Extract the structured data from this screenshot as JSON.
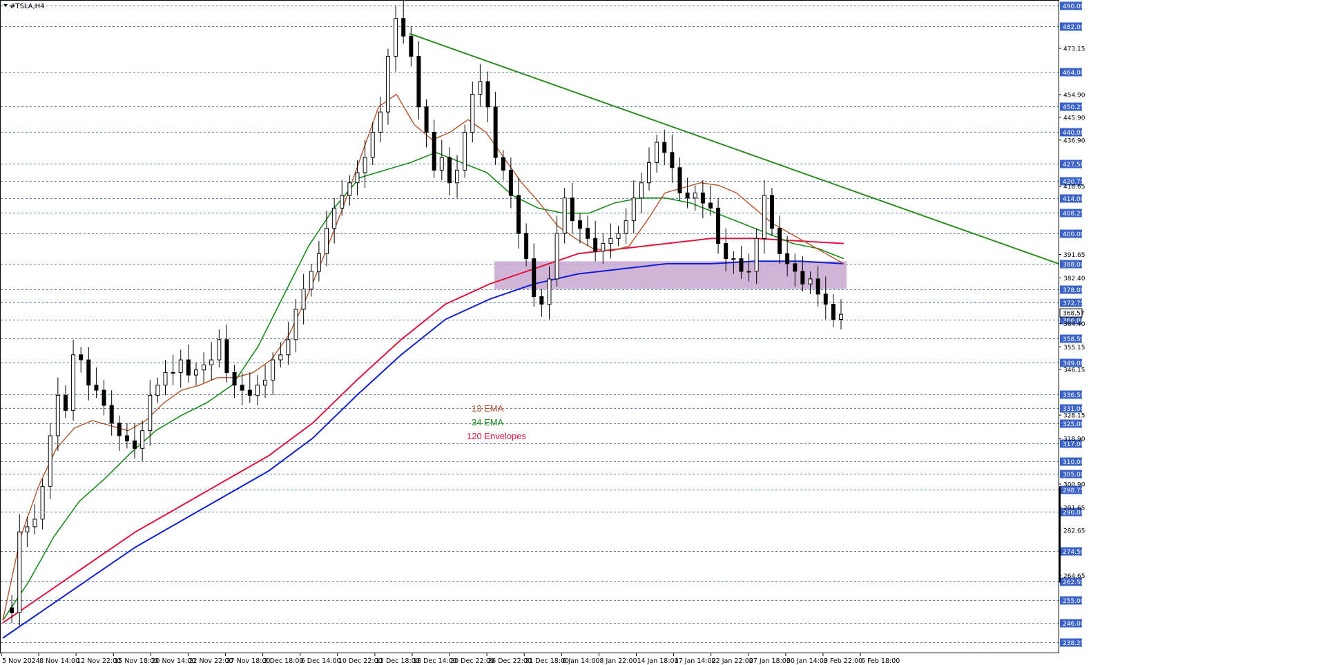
{
  "symbol_title": "#TSLA,H4",
  "colors": {
    "ema13": "#b5532a",
    "ema34": "#1a8c1a",
    "env_upper": "#e0143c",
    "env_lower": "#1020d0",
    "trendline": "#2e8b22",
    "zone": "#c9a8d2",
    "grid": "#5b7fb8",
    "axis_highlight": "#3c64c8",
    "bull": "#ffffff",
    "bear": "#000000"
  },
  "legend": [
    {
      "label": "13 EMA",
      "color": "#b5532a"
    },
    {
      "label": "34 EMA",
      "color": "#1a8c1a"
    },
    {
      "label": "120 Envelopes",
      "color": "#e0143c"
    }
  ],
  "chart_data": {
    "type": "candlestick",
    "title": "#TSLA,H4",
    "ylim": [
      234,
      492
    ],
    "grid": "horizontal dashed lines at highlighted levels",
    "y_ticks_highlighted": [
      "490.00",
      "482.00",
      "464.00",
      "450.25",
      "440.00",
      "427.50",
      "420.75",
      "414.00",
      "408.25",
      "400.00",
      "388.00",
      "378.00",
      "372.75",
      "366.00",
      "358.50",
      "349.00",
      "336.50",
      "331.00",
      "325.00",
      "317.00",
      "310.00",
      "305.00",
      "298.75",
      "290.00",
      "274.50",
      "262.50",
      "255.00",
      "246.00",
      "238.25"
    ],
    "y_ticks_plain": [
      "473.15",
      "454.90",
      "445.90",
      "436.90",
      "418.65",
      "391.65",
      "382.40",
      "364.40",
      "355.15",
      "346.15",
      "328.15",
      "318.90",
      "300.90",
      "291.65",
      "282.65",
      "264.65"
    ],
    "current_price_label": "368.57",
    "x_tick_labels": [
      "5 Nov 2024",
      "8 Nov 14:00",
      "12 Nov 22:00",
      "15 Nov 18:00",
      "20 Nov 14:00",
      "22 Nov 22:00",
      "27 Nov 18:00",
      "3 Dec 18:00",
      "6 Dec 14:00",
      "10 Dec 22:00",
      "13 Dec 18:00",
      "18 Dec 14:00",
      "20 Dec 22:00",
      "26 Dec 22:00",
      "31 Dec 18:00",
      "6 Jan 14:00",
      "8 Jan 22:00",
      "14 Jan 18:00",
      "17 Jan 14:00",
      "22 Jan 22:00",
      "27 Jan 18:00",
      "30 Jan 14:00",
      "3 Feb 22:00",
      "6 Feb 18:00"
    ],
    "price_path": [
      252,
      250,
      282,
      284,
      287,
      300,
      320,
      336,
      330,
      352,
      350,
      340,
      338,
      332,
      325,
      320,
      318,
      315,
      322,
      336,
      340,
      345,
      345,
      350,
      344,
      346,
      348,
      350,
      358,
      345,
      340,
      338,
      336,
      340,
      342,
      350,
      352,
      358,
      370,
      378,
      385,
      392,
      402,
      410,
      415,
      420,
      424,
      430,
      440,
      448,
      470,
      485,
      478,
      470,
      450,
      440,
      425,
      430,
      420,
      425,
      440,
      455,
      460,
      450,
      430,
      425,
      415,
      400,
      390,
      375,
      372,
      382,
      400,
      414,
      405,
      402,
      398,
      393,
      396,
      398,
      400,
      405,
      414,
      420,
      428,
      436,
      432,
      426,
      416,
      414,
      416,
      412,
      410,
      396,
      390,
      390,
      385,
      385,
      398,
      415,
      402,
      392,
      388,
      385,
      380,
      382,
      376,
      372,
      366,
      368
    ],
    "ema13": [
      247,
      280,
      300,
      315,
      323,
      326,
      324,
      322,
      326,
      333,
      338,
      340,
      343,
      343,
      345,
      350,
      360,
      375,
      392,
      410,
      430,
      450,
      455,
      443,
      437,
      440,
      445,
      440,
      430,
      420,
      412,
      403,
      398,
      394,
      393,
      395,
      405,
      416,
      418,
      420,
      419,
      416,
      410,
      404,
      400,
      396,
      392,
      388
    ],
    "ema34": [
      247,
      262,
      280,
      294,
      303,
      313,
      322,
      328,
      333,
      340,
      355,
      375,
      395,
      410,
      422,
      425,
      428,
      432,
      428,
      424,
      415,
      410,
      408,
      408,
      412,
      414,
      414,
      412,
      408,
      404,
      400,
      396,
      394,
      390
    ],
    "envelope_upper": [
      246,
      258,
      270,
      282,
      292,
      302,
      312,
      325,
      342,
      358,
      372,
      380,
      386,
      392,
      394,
      396,
      398,
      398,
      397,
      396
    ],
    "envelope_lower": [
      240,
      252,
      264,
      276,
      286,
      296,
      306,
      319,
      336,
      352,
      366,
      374,
      380,
      384,
      386,
      388,
      388,
      389,
      389,
      388
    ],
    "support_zone": {
      "from": 378,
      "to": 389
    },
    "trendline": {
      "start_price": 479,
      "end_price": 388
    }
  }
}
